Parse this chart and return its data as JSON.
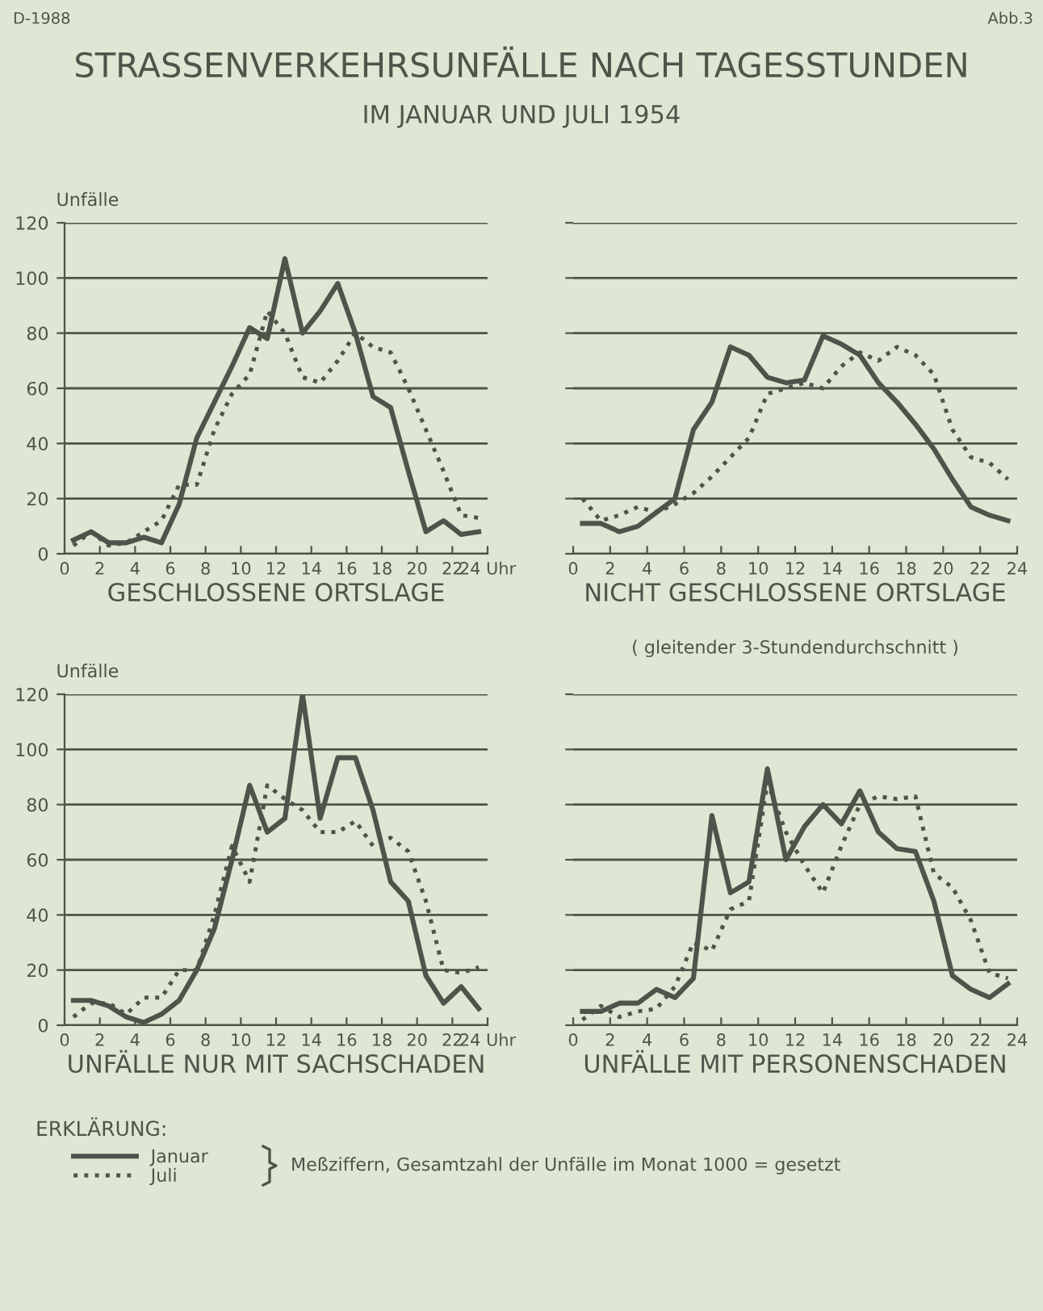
{
  "chart_data": [
    {
      "type": "line",
      "title": "STRASSENVERKEHRSUNFÄLLE NACH TAGESSTUNDEN",
      "subtitle": "IM JANUAR UND JULI 1954",
      "xlabel": "GESCHLOSSENE ORTSLAGE",
      "ylabel": "Unfälle",
      "annotations": [
        "D-1988",
        "Abb.3",
        "ERKLÄRUNG:",
        "Meßziffern, Gesamtzahl der Unfälle im Monat 1000 = gesetzt"
      ],
      "legend": "bottom left",
      "x": [
        0.5,
        1.5,
        2.5,
        3.5,
        4.5,
        5.5,
        6.5,
        7.5,
        8.5,
        9.5,
        10.5,
        11.5,
        12.5,
        13.5,
        14.5,
        15.5,
        16.5,
        17.5,
        18.5,
        19.5,
        20.5,
        21.5,
        22.5,
        23.5
      ],
      "series": [
        {
          "name": "Januar",
          "color": "#4f544a",
          "line_style": "solid",
          "values": [
            5,
            8,
            4,
            4,
            6,
            4,
            18,
            42,
            55,
            68,
            82,
            78,
            107,
            80,
            88,
            98,
            80,
            57,
            53,
            30,
            8,
            12,
            7,
            8
          ]
        },
        {
          "name": "Juli",
          "color": "#4f544a",
          "line_style": "dotted",
          "values": [
            3,
            8,
            3,
            4,
            8,
            12,
            25,
            25,
            45,
            58,
            65,
            88,
            80,
            64,
            62,
            70,
            80,
            75,
            73,
            60,
            45,
            30,
            14,
            13
          ]
        }
      ],
      "xlim": [
        0,
        24
      ],
      "xticks": [
        0,
        2,
        4,
        6,
        8,
        10,
        12,
        14,
        16,
        18,
        20,
        22,
        {
          "value": 24,
          "label": "24 Uhr"
        }
      ],
      "ylim": [
        0,
        120
      ],
      "yticks": [
        0,
        20,
        40,
        60,
        80,
        100,
        120
      ],
      "grid": "y"
    },
    {
      "type": "line",
      "xlabel": "NICHT GESCHLOSSENE ORTSLAGE",
      "annotations": [
        "( gleitender 3-Stundendurchschnitt )"
      ],
      "x": [
        0.5,
        1.5,
        2.5,
        3.5,
        4.5,
        5.5,
        6.5,
        7.5,
        8.5,
        9.5,
        10.5,
        11.5,
        12.5,
        13.5,
        14.5,
        15.5,
        16.5,
        17.5,
        18.5,
        19.5,
        20.5,
        21.5,
        22.5,
        23.5
      ],
      "series": [
        {
          "color": "#4f544a",
          "line_style": "solid",
          "values": [
            11,
            11,
            8,
            10,
            15,
            20,
            45,
            55,
            75,
            72,
            64,
            62,
            63,
            79,
            76,
            72,
            62,
            55,
            47,
            38,
            27,
            17,
            14,
            12
          ]
        },
        {
          "color": "#4f544a",
          "line_style": "dotted",
          "values": [
            20,
            12,
            14,
            17,
            15,
            18,
            22,
            28,
            35,
            42,
            58,
            60,
            62,
            60,
            68,
            73,
            70,
            75,
            72,
            65,
            45,
            35,
            33,
            27
          ]
        }
      ],
      "xlim": [
        0,
        24
      ],
      "xticks": [
        0,
        2,
        4,
        6,
        8,
        10,
        12,
        14,
        16,
        18,
        20,
        22,
        24
      ],
      "ylim": [
        0,
        120
      ],
      "yticks": [
        {
          "value": 0,
          "label": null
        },
        {
          "value": 20,
          "label": null
        },
        {
          "value": 40,
          "label": null
        },
        {
          "value": 60,
          "label": null
        },
        {
          "value": 80,
          "label": null
        },
        {
          "value": 100,
          "label": null
        },
        {
          "value": 120,
          "label": null
        }
      ],
      "grid": "y",
      "tick_labels": "x"
    },
    {
      "type": "line",
      "xlabel": "UNFÄLLE NUR MIT SACHSCHADEN",
      "ylabel": "Unfälle",
      "x": [
        0.5,
        1.5,
        2.5,
        3.5,
        4.5,
        5.5,
        6.5,
        7.5,
        8.5,
        9.5,
        10.5,
        11.5,
        12.5,
        13.5,
        14.5,
        15.5,
        16.5,
        17.5,
        18.5,
        19.5,
        20.5,
        21.5,
        22.5,
        23.5
      ],
      "series": [
        {
          "color": "#4f544a",
          "line_style": "solid",
          "values": [
            9,
            9,
            7,
            3,
            1,
            4,
            9,
            20,
            35,
            60,
            87,
            70,
            75,
            120,
            75,
            97,
            97,
            78,
            52,
            45,
            18,
            8,
            14,
            6
          ]
        },
        {
          "color": "#4f544a",
          "line_style": "dotted",
          "values": [
            3,
            8,
            8,
            4,
            10,
            10,
            20,
            20,
            40,
            65,
            52,
            87,
            82,
            78,
            70,
            70,
            74,
            65,
            68,
            63,
            45,
            20,
            19,
            21
          ]
        }
      ],
      "xlim": [
        0,
        24
      ],
      "xticks": [
        0,
        2,
        4,
        6,
        8,
        10,
        12,
        14,
        16,
        18,
        20,
        22,
        {
          "value": 24,
          "label": "24 Uhr"
        }
      ],
      "ylim": [
        0,
        120
      ],
      "yticks": [
        0,
        20,
        40,
        60,
        80,
        100,
        120
      ],
      "grid": "y"
    },
    {
      "type": "line",
      "xlabel": "UNFÄLLE MIT PERSONENSCHADEN",
      "x": [
        0.5,
        1.5,
        2.5,
        3.5,
        4.5,
        5.5,
        6.5,
        7.5,
        8.5,
        9.5,
        10.5,
        11.5,
        12.5,
        13.5,
        14.5,
        15.5,
        16.5,
        17.5,
        18.5,
        19.5,
        20.5,
        21.5,
        22.5,
        23.5
      ],
      "series": [
        {
          "color": "#4f544a",
          "line_style": "solid",
          "values": [
            5,
            5,
            8,
            8,
            13,
            10,
            17,
            76,
            48,
            52,
            93,
            60,
            72,
            80,
            73,
            85,
            70,
            64,
            63,
            45,
            18,
            13,
            10,
            15
          ]
        },
        {
          "color": "#4f544a",
          "line_style": "dotted",
          "values": [
            2,
            7,
            3,
            5,
            6,
            14,
            30,
            27,
            42,
            45,
            88,
            70,
            58,
            48,
            65,
            80,
            83,
            82,
            83,
            55,
            50,
            38,
            19,
            17
          ]
        }
      ],
      "xlim": [
        0,
        24
      ],
      "xticks": [
        0,
        2,
        4,
        6,
        8,
        10,
        12,
        14,
        16,
        18,
        20,
        22,
        24
      ],
      "ylim": [
        0,
        120
      ],
      "yticks": [
        {
          "value": 0,
          "label": null
        },
        {
          "value": 20,
          "label": null
        },
        {
          "value": 40,
          "label": null
        },
        {
          "value": 60,
          "label": null
        },
        {
          "value": 80,
          "label": null
        },
        {
          "value": 100,
          "label": null
        },
        {
          "value": 120,
          "label": null
        }
      ],
      "grid": "y",
      "tick_labels": "x"
    }
  ]
}
